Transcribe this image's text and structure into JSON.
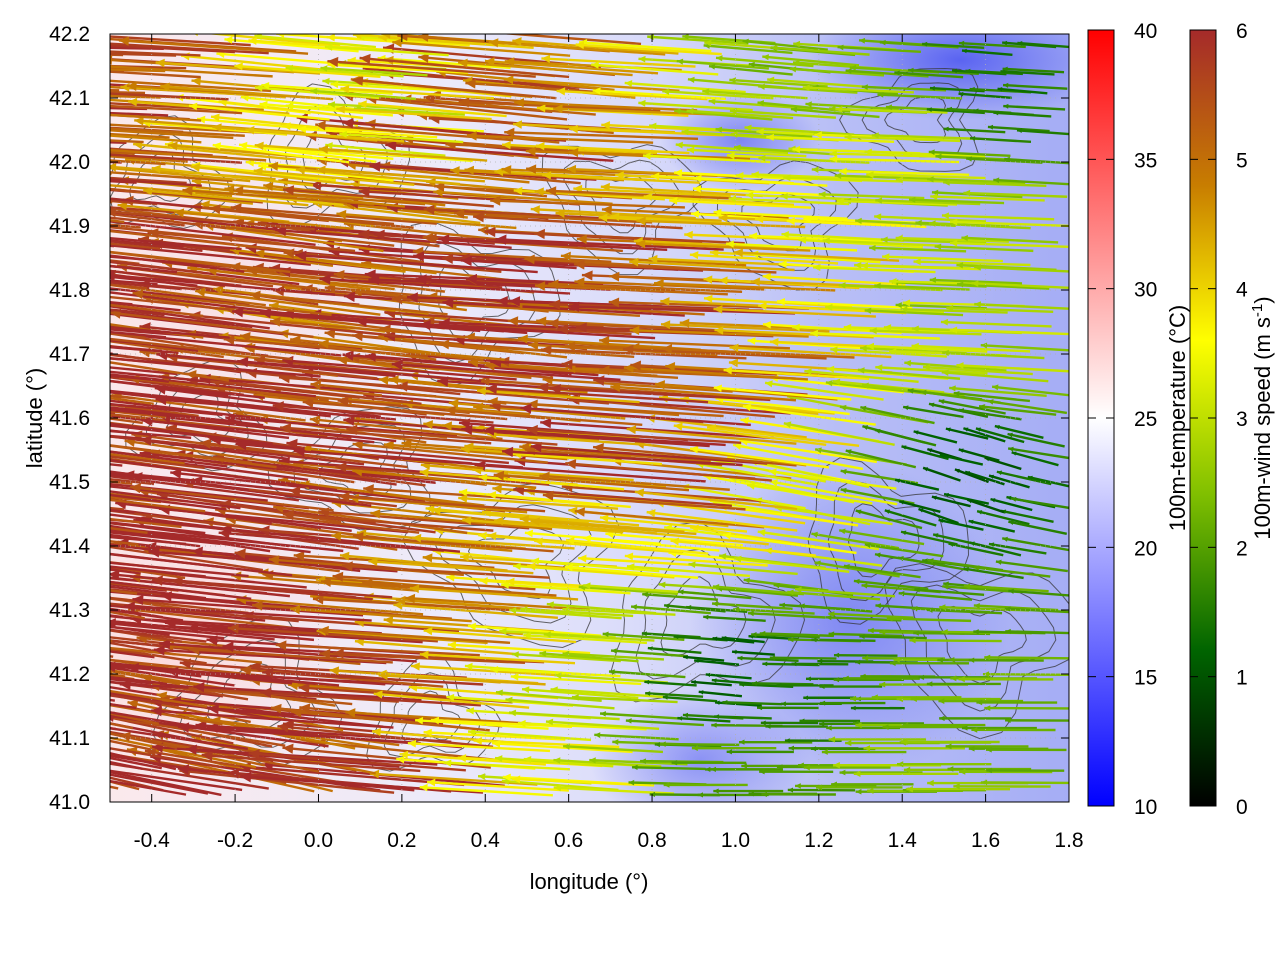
{
  "chart_data": {
    "type": "vector-field-heatmap",
    "title": "",
    "xlabel": "longitude (°)",
    "ylabel": "latitude (°)",
    "xlim": [
      -0.5,
      1.8
    ],
    "ylim": [
      41.0,
      42.2
    ],
    "x_ticks": [
      "-0.4",
      "-0.2",
      "0.0",
      "0.2",
      "0.4",
      "0.6",
      "0.8",
      "1.0",
      "1.2",
      "1.4",
      "1.6",
      "1.8"
    ],
    "x_tick_values": [
      -0.4,
      -0.2,
      0.0,
      0.2,
      0.4,
      0.6,
      0.8,
      1.0,
      1.2,
      1.4,
      1.6,
      1.8
    ],
    "y_ticks": [
      "41.0",
      "41.1",
      "41.2",
      "41.3",
      "41.4",
      "41.5",
      "41.6",
      "41.7",
      "41.8",
      "41.9",
      "42.0",
      "42.1",
      "42.2"
    ],
    "y_tick_values": [
      41.0,
      41.1,
      41.2,
      41.3,
      41.4,
      41.5,
      41.6,
      41.7,
      41.8,
      41.9,
      42.0,
      42.1,
      42.2
    ],
    "grid": true,
    "temperature_colorbar": {
      "label": "100m-temperature (°C)",
      "range": [
        10,
        40
      ],
      "ticks": [
        "10",
        "15",
        "20",
        "25",
        "30",
        "35",
        "40"
      ],
      "tick_values": [
        10,
        15,
        20,
        25,
        30,
        35,
        40
      ],
      "colors": [
        "#0000ff",
        "#ffffff",
        "#ff0000"
      ]
    },
    "wind_colorbar": {
      "label": "100m-wind speed (m s",
      "label_sup": "-1",
      "label_end": ")",
      "range": [
        0,
        6
      ],
      "ticks": [
        "0",
        "1",
        "2",
        "3",
        "4",
        "5",
        "6"
      ],
      "tick_values": [
        0,
        1,
        2,
        3,
        4,
        5,
        6
      ],
      "colors": [
        "#000000",
        "#006400",
        "#7fbf00",
        "#ffff00",
        "#c87d00",
        "#a52a2a"
      ]
    },
    "temperature_field": [
      {
        "lon": -0.5,
        "lat": 41.2,
        "value": 28
      },
      {
        "lon": -0.4,
        "lat": 41.9,
        "value": 24
      },
      {
        "lon": 0.0,
        "lat": 41.5,
        "value": 24
      },
      {
        "lon": 0.3,
        "lat": 41.8,
        "value": 23
      },
      {
        "lon": 0.6,
        "lat": 41.3,
        "value": 21
      },
      {
        "lon": 0.9,
        "lat": 41.1,
        "value": 18
      },
      {
        "lon": 1.3,
        "lat": 41.4,
        "value": 18
      },
      {
        "lon": 1.5,
        "lat": 42.1,
        "value": 15
      },
      {
        "lon": 1.0,
        "lat": 42.0,
        "value": 19
      },
      {
        "lon": 1.7,
        "lat": 41.7,
        "value": 17
      }
    ],
    "wind_vectors": [
      {
        "lon": -0.45,
        "lat": 42.15,
        "u": -5.8,
        "v": 0.1
      },
      {
        "lon": -0.2,
        "lat": 42.1,
        "u": -5.5,
        "v": 0.3
      },
      {
        "lon": 0.05,
        "lat": 42.05,
        "u": -4.0,
        "v": 0.4
      },
      {
        "lon": 0.3,
        "lat": 42.1,
        "u": -3.2,
        "v": 0.2
      },
      {
        "lon": 0.6,
        "lat": 42.05,
        "u": -5.5,
        "v": 0.5
      },
      {
        "lon": 0.9,
        "lat": 42.0,
        "u": -4.5,
        "v": 0.2
      },
      {
        "lon": 1.2,
        "lat": 42.1,
        "u": -2.5,
        "v": 0.2
      },
      {
        "lon": 1.5,
        "lat": 42.0,
        "u": -3.0,
        "v": 0.1
      },
      {
        "lon": 1.7,
        "lat": 42.1,
        "u": -1.5,
        "v": 0.1
      },
      {
        "lon": -0.4,
        "lat": 41.8,
        "u": -6.0,
        "v": 0.6
      },
      {
        "lon": -0.1,
        "lat": 41.75,
        "u": -6.0,
        "v": 0.7
      },
      {
        "lon": 0.2,
        "lat": 41.8,
        "u": -5.0,
        "v": 0.6
      },
      {
        "lon": 0.5,
        "lat": 41.75,
        "u": -5.8,
        "v": 0.5
      },
      {
        "lon": 0.8,
        "lat": 41.8,
        "u": -6.0,
        "v": 0.3
      },
      {
        "lon": 1.1,
        "lat": 41.75,
        "u": -5.5,
        "v": 0.2
      },
      {
        "lon": 1.35,
        "lat": 41.8,
        "u": -4.0,
        "v": 0.2
      },
      {
        "lon": 1.6,
        "lat": 41.8,
        "u": -2.8,
        "v": 0.1
      },
      {
        "lon": -0.4,
        "lat": 41.5,
        "u": -6.0,
        "v": 0.6
      },
      {
        "lon": -0.1,
        "lat": 41.45,
        "u": -6.0,
        "v": 0.8
      },
      {
        "lon": 0.2,
        "lat": 41.5,
        "u": -6.0,
        "v": 0.7
      },
      {
        "lon": 0.5,
        "lat": 41.55,
        "u": -5.5,
        "v": 0.5
      },
      {
        "lon": 0.75,
        "lat": 41.5,
        "u": -4.0,
        "v": 0.3
      },
      {
        "lon": 1.0,
        "lat": 41.55,
        "u": -5.8,
        "v": 0.4
      },
      {
        "lon": 1.3,
        "lat": 41.5,
        "u": -3.5,
        "v": 0.6
      },
      {
        "lon": 1.55,
        "lat": 41.5,
        "u": -1.0,
        "v": 0.3
      },
      {
        "lon": -0.4,
        "lat": 41.2,
        "u": -6.0,
        "v": 0.9
      },
      {
        "lon": -0.1,
        "lat": 41.25,
        "u": -6.0,
        "v": 0.6
      },
      {
        "lon": 0.2,
        "lat": 41.2,
        "u": -6.0,
        "v": 0.4
      },
      {
        "lon": 0.5,
        "lat": 41.25,
        "u": -5.0,
        "v": 0.3
      },
      {
        "lon": 0.75,
        "lat": 41.2,
        "u": -3.0,
        "v": 0.2
      },
      {
        "lon": 1.0,
        "lat": 41.2,
        "u": -1.2,
        "v": 0.1
      },
      {
        "lon": 1.3,
        "lat": 41.15,
        "u": -1.5,
        "v": 0.0
      },
      {
        "lon": 1.6,
        "lat": 41.15,
        "u": -2.2,
        "v": 0.0
      },
      {
        "lon": -0.35,
        "lat": 41.05,
        "u": -6.0,
        "v": 1.2
      },
      {
        "lon": 0.0,
        "lat": 41.05,
        "u": -5.5,
        "v": 1.0
      },
      {
        "lon": 0.35,
        "lat": 41.05,
        "u": -6.0,
        "v": 0.5
      },
      {
        "lon": 0.65,
        "lat": 41.05,
        "u": -3.5,
        "v": 0.2
      },
      {
        "lon": 1.1,
        "lat": 41.05,
        "u": -2.0,
        "v": 0.0
      },
      {
        "lon": 1.5,
        "lat": 41.05,
        "u": -2.5,
        "v": 0.0
      }
    ]
  }
}
